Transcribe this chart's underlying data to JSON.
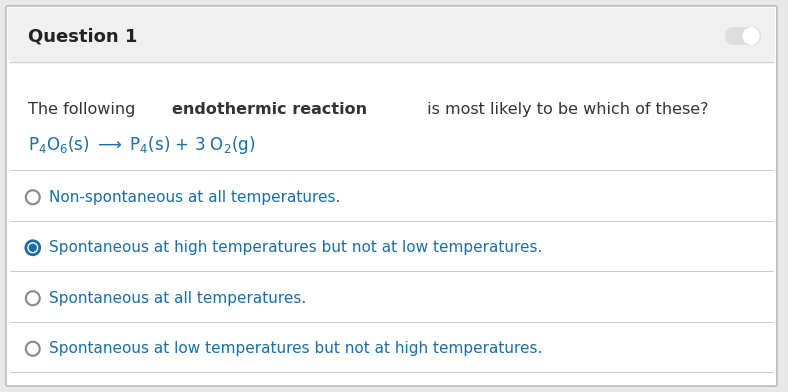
{
  "title": "Question 1",
  "title_bg": "#f0f0f0",
  "title_color": "#222222",
  "title_fontsize": 13,
  "body_bg": "#ffffff",
  "question_text_parts": [
    {
      "text": "The following ",
      "bold": false,
      "color": "#333333"
    },
    {
      "text": "endothermic reaction",
      "bold": true,
      "color": "#333333"
    },
    {
      "text": " is most likely to be which of these?",
      "bold": false,
      "color": "#333333"
    }
  ],
  "reaction_parts": [
    {
      "text": "P",
      "sub": "4",
      "sup": "",
      "after": ""
    },
    {
      "text": "O",
      "sub": "6",
      "sup": "",
      "after": ""
    },
    {
      "text": "(s) ⟶ P",
      "sub": "",
      "sup": "",
      "after": ""
    },
    {
      "text": "4",
      "sub": "",
      "sup": "",
      "after": ""
    },
    {
      "text": "(s) + 3 O",
      "sub": "",
      "sup": "",
      "after": ""
    },
    {
      "text": "2",
      "sub": "",
      "sup": "",
      "after": ""
    },
    {
      "text": "(g)",
      "sub": "",
      "sup": "",
      "after": ""
    }
  ],
  "reaction_color": "#1a6ea8",
  "options": [
    {
      "text": "Non-spontaneous at all temperatures.",
      "selected": false,
      "text_color": "#1a6ea8",
      "highlight_words": []
    },
    {
      "text": "Spontaneous at high temperatures but not at low temperatures.",
      "selected": true,
      "text_color": "#1a6ea8",
      "highlight_words": []
    },
    {
      "text": "Spontaneous at all temperatures.",
      "selected": false,
      "text_color": "#1a6ea8",
      "highlight_words": []
    },
    {
      "text": "Spontaneous at low temperatures but not at high temperatures.",
      "selected": false,
      "text_color": "#1a6ea8",
      "highlight_words": []
    }
  ],
  "radio_unselected_color": "#888888",
  "radio_selected_color": "#1a6ea8",
  "separator_color": "#cccccc",
  "border_color": "#bbbbbb",
  "fig_width": 7.88,
  "fig_height": 3.92,
  "toggle_color": "#dddddd"
}
